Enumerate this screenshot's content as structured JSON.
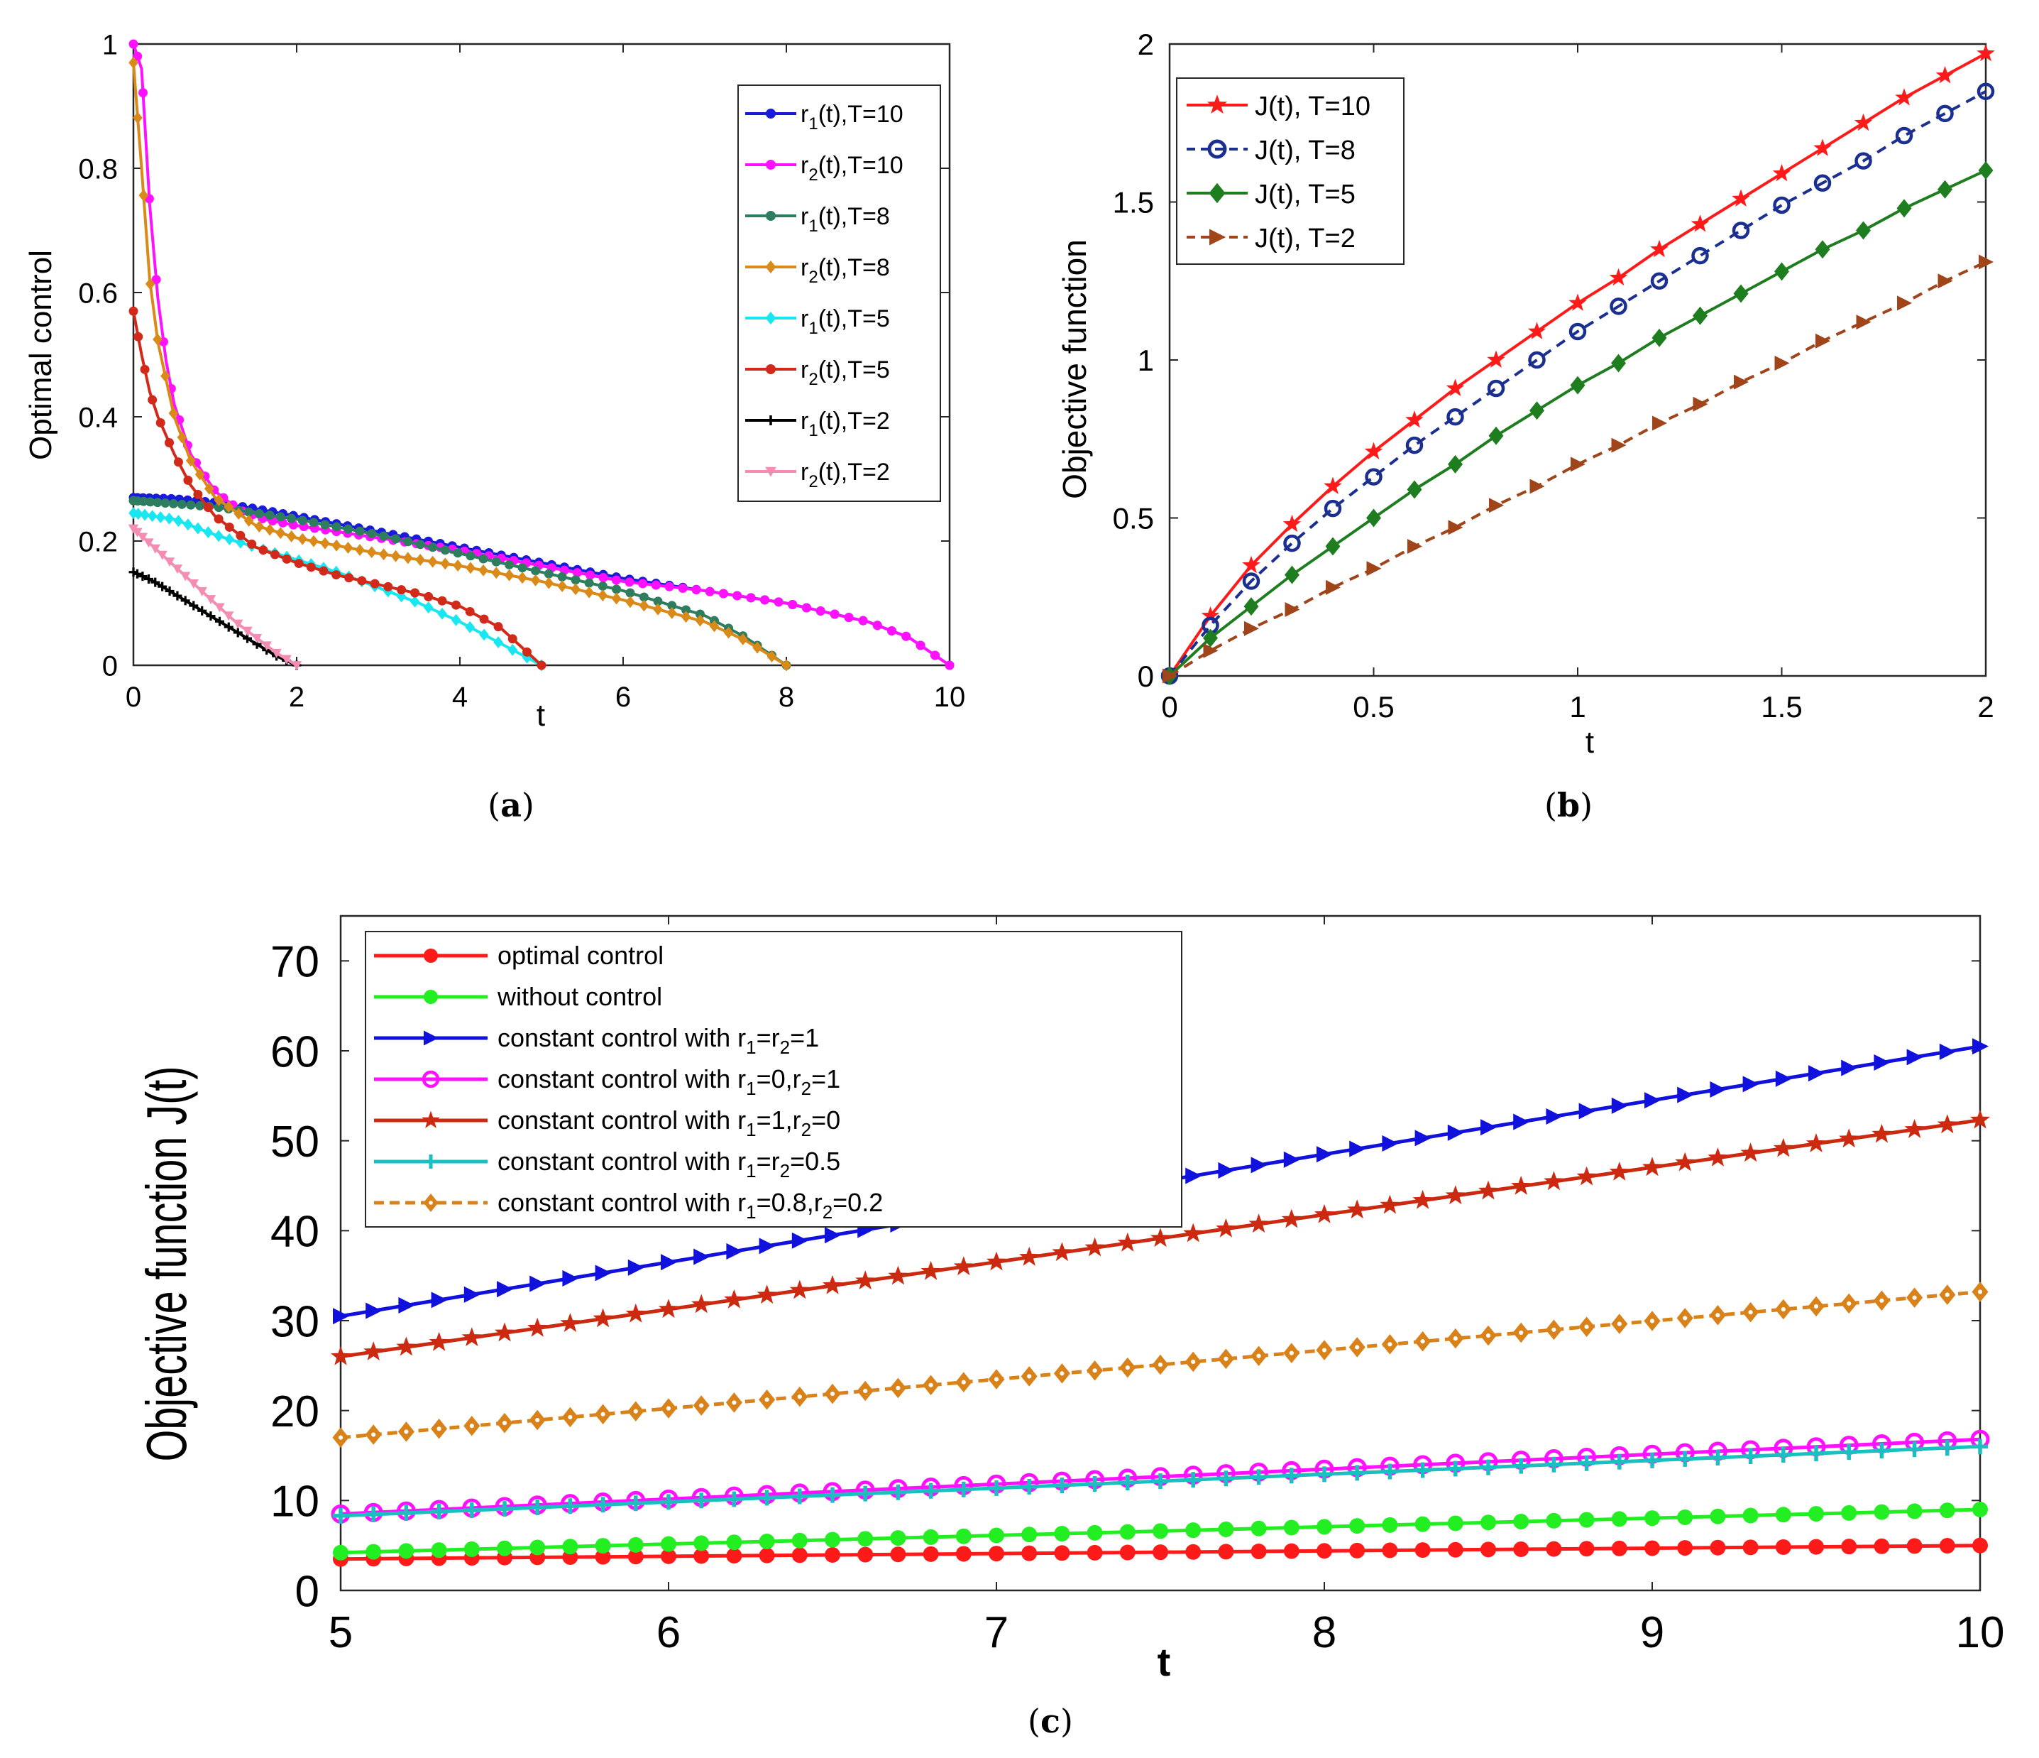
{
  "chart_data": [
    {
      "id": "a",
      "type": "line",
      "caption_open": "(",
      "caption_letter": "a",
      "caption_close": ")",
      "title": "",
      "xlabel": "t",
      "ylabel": "Optimal control",
      "xlim": [
        0,
        10
      ],
      "ylim": [
        0,
        1
      ],
      "xticks": [
        "0",
        "2",
        "4",
        "6",
        "8",
        "10"
      ],
      "yticks": [
        "0",
        "0.2",
        "0.4",
        "0.6",
        "0.8",
        "1"
      ],
      "legend_position": "top-right",
      "series": [
        {
          "name": "r1(t),T=10",
          "label_main": "r",
          "label_sub": "1",
          "label_rest": "(t),T=10",
          "color": "#1a1adb",
          "marker": "dot",
          "dash": "",
          "x": [
            0,
            0.5,
            1,
            1.5,
            2,
            3,
            4,
            5,
            6,
            7,
            8,
            9,
            9.5,
            10
          ],
          "y": [
            0.27,
            0.268,
            0.262,
            0.252,
            0.24,
            0.215,
            0.19,
            0.165,
            0.14,
            0.12,
            0.1,
            0.07,
            0.045,
            0
          ]
        },
        {
          "name": "r2(t),T=10",
          "label_main": "r",
          "label_sub": "2",
          "label_rest": "(t),T=10",
          "color": "#ff11ff",
          "marker": "dot",
          "dash": "",
          "x": [
            0,
            0.1,
            0.2,
            0.3,
            0.4,
            0.5,
            0.7,
            1,
            1.3,
            1.6,
            2,
            3,
            4,
            5,
            6,
            7,
            8,
            9,
            9.5,
            10
          ],
          "y": [
            1,
            0.96,
            0.74,
            0.59,
            0.49,
            0.42,
            0.34,
            0.28,
            0.25,
            0.235,
            0.225,
            0.205,
            0.185,
            0.16,
            0.135,
            0.12,
            0.1,
            0.07,
            0.045,
            0
          ]
        },
        {
          "name": "r1(t),T=8",
          "label_main": "r",
          "label_sub": "1",
          "label_rest": "(t),T=8",
          "color": "#2e7d5e",
          "marker": "dot",
          "dash": "",
          "x": [
            0,
            1,
            2,
            3,
            4,
            5,
            6,
            7,
            7.5,
            8
          ],
          "y": [
            0.265,
            0.255,
            0.235,
            0.21,
            0.18,
            0.15,
            0.12,
            0.08,
            0.045,
            0
          ]
        },
        {
          "name": "r2(t),T=8",
          "label_main": "r",
          "label_sub": "2",
          "label_rest": "(t),T=8",
          "color": "#d98a18",
          "marker": "diamond",
          "dash": "",
          "x": [
            0,
            0.1,
            0.2,
            0.3,
            0.5,
            0.7,
            1,
            1.5,
            2,
            3,
            4,
            5,
            6,
            7,
            7.5,
            8
          ],
          "y": [
            0.97,
            0.8,
            0.62,
            0.52,
            0.4,
            0.33,
            0.27,
            0.225,
            0.205,
            0.18,
            0.16,
            0.135,
            0.105,
            0.07,
            0.04,
            0
          ]
        },
        {
          "name": "r1(t),T=5",
          "label_main": "r",
          "label_sub": "1",
          "label_rest": "(t),T=5",
          "color": "#18e6f0",
          "marker": "diamond",
          "dash": "",
          "x": [
            0,
            0.5,
            1,
            1.5,
            2,
            2.5,
            3,
            3.5,
            4,
            4.5,
            5
          ],
          "y": [
            0.245,
            0.235,
            0.21,
            0.19,
            0.17,
            0.15,
            0.125,
            0.1,
            0.07,
            0.035,
            0
          ]
        },
        {
          "name": "r2(t),T=5",
          "label_main": "r",
          "label_sub": "2",
          "label_rest": "(t),T=5",
          "color": "#d22a1a",
          "marker": "dot",
          "dash": "",
          "x": [
            0,
            0.1,
            0.2,
            0.3,
            0.5,
            0.7,
            1,
            1.5,
            2,
            2.5,
            3,
            3.5,
            4,
            4.5,
            5
          ],
          "y": [
            0.57,
            0.5,
            0.44,
            0.4,
            0.34,
            0.29,
            0.24,
            0.19,
            0.165,
            0.145,
            0.13,
            0.115,
            0.095,
            0.06,
            0
          ]
        },
        {
          "name": "r1(t),T=2",
          "label_main": "r",
          "label_sub": "1",
          "label_rest": "(t),T=2",
          "color": "#000000",
          "marker": "plus",
          "dash": "",
          "x": [
            0,
            0.25,
            0.5,
            0.75,
            1,
            1.25,
            1.5,
            1.75,
            2
          ],
          "y": [
            0.15,
            0.135,
            0.115,
            0.095,
            0.075,
            0.055,
            0.035,
            0.015,
            0
          ]
        },
        {
          "name": "r2(t),T=2",
          "label_main": "r",
          "label_sub": "2",
          "label_rest": "(t),T=2",
          "color": "#f48cb4",
          "marker": "triangle-down",
          "dash": "",
          "x": [
            0,
            0.25,
            0.5,
            0.75,
            1,
            1.25,
            1.5,
            1.75,
            2
          ],
          "y": [
            0.22,
            0.19,
            0.16,
            0.13,
            0.1,
            0.07,
            0.045,
            0.02,
            0
          ]
        }
      ]
    },
    {
      "id": "b",
      "type": "line",
      "caption_open": "(",
      "caption_letter": "b",
      "caption_close": ")",
      "title": "",
      "xlabel": "t",
      "ylabel": "Objective function",
      "xlim": [
        0,
        2
      ],
      "ylim": [
        0,
        2
      ],
      "xticks": [
        "0",
        "0.5",
        "1",
        "1.5",
        "2"
      ],
      "yticks": [
        "0",
        "0.5",
        "1",
        "1.5",
        "2"
      ],
      "legend_position": "top-left",
      "series": [
        {
          "name": "J(t), T=10",
          "color": "#ff1a1a",
          "marker": "star",
          "dash": "",
          "x": [
            0,
            0.1,
            0.2,
            0.3,
            0.4,
            0.5,
            0.6,
            0.7,
            0.8,
            0.9,
            1,
            1.1,
            1.2,
            1.3,
            1.4,
            1.5,
            1.6,
            1.7,
            1.8,
            1.9,
            2
          ],
          "y": [
            0,
            0.19,
            0.35,
            0.48,
            0.6,
            0.71,
            0.81,
            0.91,
            1.0,
            1.09,
            1.18,
            1.26,
            1.35,
            1.43,
            1.51,
            1.59,
            1.67,
            1.75,
            1.83,
            1.9,
            1.97
          ]
        },
        {
          "name": "J(t), T=8",
          "color": "#1a2f8f",
          "marker": "circle-open",
          "dash": "14,10",
          "x": [
            0,
            0.1,
            0.2,
            0.3,
            0.4,
            0.5,
            0.6,
            0.7,
            0.8,
            0.9,
            1,
            1.1,
            1.2,
            1.3,
            1.4,
            1.5,
            1.6,
            1.7,
            1.8,
            1.9,
            2
          ],
          "y": [
            0,
            0.16,
            0.3,
            0.42,
            0.53,
            0.63,
            0.73,
            0.82,
            0.91,
            1.0,
            1.09,
            1.17,
            1.25,
            1.33,
            1.41,
            1.49,
            1.56,
            1.63,
            1.71,
            1.78,
            1.85
          ]
        },
        {
          "name": "J(t), T=5",
          "color": "#1e7d1e",
          "marker": "diamond",
          "dash": "",
          "x": [
            0,
            0.1,
            0.2,
            0.3,
            0.4,
            0.5,
            0.6,
            0.7,
            0.8,
            0.9,
            1,
            1.1,
            1.2,
            1.3,
            1.4,
            1.5,
            1.6,
            1.7,
            1.8,
            1.9,
            2
          ],
          "y": [
            0,
            0.12,
            0.22,
            0.32,
            0.41,
            0.5,
            0.59,
            0.67,
            0.76,
            0.84,
            0.92,
            0.99,
            1.07,
            1.14,
            1.21,
            1.28,
            1.35,
            1.41,
            1.48,
            1.54,
            1.6
          ]
        },
        {
          "name": "J(t), T=2",
          "color": "#a0441a",
          "marker": "triangle-right",
          "dash": "14,10",
          "x": [
            0,
            0.1,
            0.2,
            0.3,
            0.4,
            0.5,
            0.6,
            0.7,
            0.8,
            0.9,
            1,
            1.1,
            1.2,
            1.3,
            1.4,
            1.5,
            1.6,
            1.7,
            1.8,
            1.9,
            2
          ],
          "y": [
            0,
            0.08,
            0.15,
            0.21,
            0.28,
            0.34,
            0.41,
            0.47,
            0.54,
            0.6,
            0.67,
            0.73,
            0.8,
            0.86,
            0.93,
            0.99,
            1.06,
            1.12,
            1.18,
            1.25,
            1.31
          ]
        }
      ]
    },
    {
      "id": "c",
      "type": "line",
      "caption_open": "(",
      "caption_letter": "c",
      "caption_close": ")",
      "title": "",
      "xlabel": "t",
      "ylabel": "Objective function J(t)",
      "xlim": [
        5,
        10
      ],
      "ylim": [
        0,
        75
      ],
      "xticks": [
        "5",
        "6",
        "7",
        "8",
        "9",
        "10"
      ],
      "yticks": [
        "0",
        "10",
        "20",
        "30",
        "40",
        "50",
        "60",
        "70"
      ],
      "legend_position": "top-left",
      "series": [
        {
          "name": "optimal control",
          "color": "#ff1a1a",
          "marker": "dot",
          "dash": "",
          "x": [
            5,
            10
          ],
          "y": [
            3.5,
            5.0
          ]
        },
        {
          "name": "without control",
          "color": "#22ee22",
          "marker": "dot",
          "dash": "",
          "x": [
            5,
            10
          ],
          "y": [
            4.2,
            9.0
          ]
        },
        {
          "name": "constant control with r1=r2=1",
          "label_parts": [
            "constant control with r",
            "1",
            "=r",
            "2",
            "=1"
          ],
          "color": "#1111dd",
          "marker": "triangle-right",
          "dash": "",
          "x": [
            5,
            10
          ],
          "y": [
            30.5,
            60.5
          ]
        },
        {
          "name": "constant control with r1=0,r2=1",
          "label_parts": [
            "constant control with r",
            "1",
            "=0,r",
            "2",
            "=1"
          ],
          "color": "#ff11ff",
          "marker": "circle-open",
          "dash": "",
          "x": [
            5,
            10
          ],
          "y": [
            8.5,
            16.8
          ]
        },
        {
          "name": "constant control with r1=1,r2=0",
          "label_parts": [
            "constant control with r",
            "1",
            "=1,r",
            "2",
            "=0"
          ],
          "color": "#cc2a10",
          "marker": "star",
          "dash": "",
          "x": [
            5,
            10
          ],
          "y": [
            26.0,
            52.3
          ]
        },
        {
          "name": "constant control with r1=r2=0.5",
          "label_parts": [
            "constant control with r",
            "1",
            "=r",
            "2",
            "=0.5"
          ],
          "color": "#1ac0c0",
          "marker": "plus",
          "dash": "",
          "x": [
            5,
            10
          ],
          "y": [
            8.3,
            16.0
          ]
        },
        {
          "name": "constant control with r1=0.8,r2=0.2",
          "label_parts": [
            "constant control with r",
            "1",
            "=0.8,r",
            "2",
            "=0.2"
          ],
          "color": "#d9821a",
          "marker": "diamond-open",
          "dash": "14,8",
          "x": [
            5,
            10
          ],
          "y": [
            17.0,
            33.2
          ]
        }
      ]
    }
  ]
}
